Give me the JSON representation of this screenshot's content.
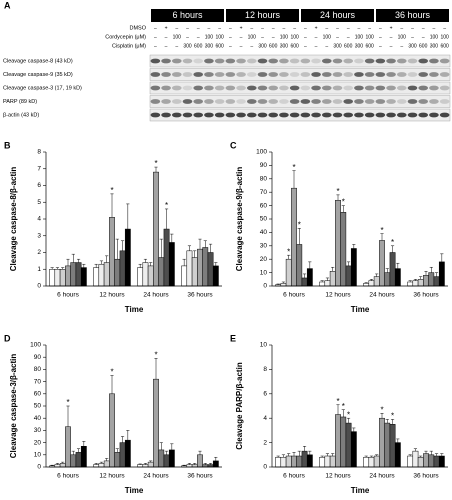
{
  "blot": {
    "panel": "A",
    "timepoints": [
      "6 hours",
      "12 hours",
      "24 hours",
      "36 hours"
    ],
    "treatments": [
      {
        "label": "DMSO",
        "lanes": [
          "–",
          "+",
          "–",
          "–",
          "–",
          "–",
          "–"
        ]
      },
      {
        "label": "Cordycepin (μM)",
        "lanes": [
          "–",
          "–",
          "100",
          "–",
          "–",
          "100",
          "100"
        ]
      },
      {
        "label": "Cisplatin (μM)",
        "lanes": [
          "–",
          "–",
          "–",
          "300",
          "600",
          "300",
          "600"
        ]
      }
    ],
    "bands": [
      "Cleavage caspase-8 (43 kD)",
      "Cleavage caspase-9 (35 kD)",
      "Cleavage caspase-3 (17, 19 kD)",
      "PARP (89 kD)",
      "β-actin (43 kD)"
    ]
  },
  "chart_data": [
    {
      "type": "bar",
      "panel": "B",
      "y_label": "Cleavage caspase-8/β-actin",
      "x_label": "Time",
      "categories": [
        "6 hours",
        "12 hours",
        "24 hours",
        "36 hours"
      ],
      "ylim": [
        0,
        8
      ],
      "yticks": [
        0,
        1,
        2,
        3,
        4,
        5,
        6,
        7,
        8
      ],
      "series": [
        {
          "color": "#ffffff",
          "values": [
            1.0,
            1.1,
            1.1,
            1.2
          ],
          "errors": [
            0.1,
            0.2,
            0.2,
            0.4
          ],
          "markers": [
            null,
            null,
            null,
            null
          ]
        },
        {
          "color": "#eeeeee",
          "values": [
            1.0,
            1.3,
            1.4,
            2.1
          ],
          "errors": [
            0.1,
            0.2,
            0.2,
            0.3
          ],
          "markers": [
            null,
            null,
            null,
            null
          ]
        },
        {
          "color": "#cfcfcf",
          "values": [
            1.0,
            1.4,
            1.2,
            1.7
          ],
          "errors": [
            0.1,
            0.4,
            0.2,
            0.4
          ],
          "markers": [
            null,
            null,
            null,
            null
          ]
        },
        {
          "color": "#a3a3a3",
          "values": [
            1.2,
            4.1,
            6.8,
            2.2
          ],
          "errors": [
            0.4,
            1.4,
            0.3,
            0.6
          ],
          "markers": [
            null,
            "*",
            "*",
            null
          ]
        },
        {
          "color": "#7d7d7d",
          "values": [
            1.4,
            1.6,
            1.7,
            2.3
          ],
          "errors": [
            0.5,
            1.2,
            1.1,
            0.4
          ],
          "markers": [
            null,
            null,
            null,
            null
          ]
        },
        {
          "color": "#4d4d4d",
          "values": [
            1.4,
            2.1,
            3.4,
            2.0
          ],
          "errors": [
            0.2,
            0.6,
            1.2,
            0.5
          ],
          "markers": [
            null,
            null,
            "*",
            null
          ]
        },
        {
          "color": "#000000",
          "values": [
            1.1,
            3.4,
            2.6,
            1.2
          ],
          "errors": [
            0.2,
            1.5,
            0.5,
            0.2
          ],
          "markers": [
            null,
            null,
            null,
            null
          ]
        }
      ]
    },
    {
      "type": "bar",
      "panel": "C",
      "y_label": "Cleavage caspase-9/β-actin",
      "x_label": "Time",
      "categories": [
        "6 hours",
        "12 hours",
        "24 hours",
        "36 hours"
      ],
      "ylim": [
        0,
        100
      ],
      "yticks": [
        0,
        10,
        20,
        30,
        40,
        50,
        60,
        70,
        80,
        90,
        100
      ],
      "series": [
        {
          "color": "#ffffff",
          "values": [
            1,
            3,
            2,
            3
          ],
          "errors": [
            0.5,
            1,
            0.5,
            1
          ],
          "markers": [
            null,
            null,
            null,
            null
          ]
        },
        {
          "color": "#eeeeee",
          "values": [
            2,
            4,
            4,
            4
          ],
          "errors": [
            1,
            2,
            1,
            1
          ],
          "markers": [
            null,
            null,
            null,
            null
          ]
        },
        {
          "color": "#cfcfcf",
          "values": [
            20,
            11,
            7,
            5
          ],
          "errors": [
            3,
            3,
            2,
            2
          ],
          "markers": [
            "*",
            null,
            null,
            null
          ]
        },
        {
          "color": "#a3a3a3",
          "values": [
            73,
            64,
            34,
            8
          ],
          "errors": [
            13,
            4,
            5,
            3
          ],
          "markers": [
            "*",
            "*",
            "*",
            null
          ]
        },
        {
          "color": "#7d7d7d",
          "values": [
            31,
            55,
            10,
            10
          ],
          "errors": [
            12,
            5,
            3,
            4
          ],
          "markers": [
            "*",
            "*",
            null,
            null
          ]
        },
        {
          "color": "#4d4d4d",
          "values": [
            6,
            15,
            25,
            7
          ],
          "errors": [
            3,
            3,
            5,
            3
          ],
          "markers": [
            null,
            null,
            "*",
            null
          ]
        },
        {
          "color": "#000000",
          "values": [
            13,
            28,
            13,
            18
          ],
          "errors": [
            5,
            3,
            4,
            6
          ],
          "markers": [
            null,
            null,
            null,
            null
          ]
        }
      ]
    },
    {
      "type": "bar",
      "panel": "D",
      "y_label": "Cleavage caspase-3/β-actin",
      "x_label": "Time",
      "categories": [
        "6 hours",
        "12 hours",
        "24 hours",
        "36 hours"
      ],
      "ylim": [
        0,
        100
      ],
      "yticks": [
        0,
        10,
        20,
        30,
        40,
        50,
        60,
        70,
        80,
        90,
        100
      ],
      "series": [
        {
          "color": "#ffffff",
          "values": [
            1,
            2,
            2,
            1
          ],
          "errors": [
            0.5,
            1,
            0.5,
            0.5
          ],
          "markers": [
            null,
            null,
            null,
            null
          ]
        },
        {
          "color": "#eeeeee",
          "values": [
            2,
            3,
            2,
            2
          ],
          "errors": [
            1,
            1,
            1,
            1
          ],
          "markers": [
            null,
            null,
            null,
            null
          ]
        },
        {
          "color": "#cfcfcf",
          "values": [
            3,
            5,
            4,
            2
          ],
          "errors": [
            1,
            2,
            1,
            1
          ],
          "markers": [
            null,
            null,
            null,
            null
          ]
        },
        {
          "color": "#a3a3a3",
          "values": [
            33,
            60,
            72,
            10
          ],
          "errors": [
            17,
            15,
            17,
            3
          ],
          "markers": [
            "*",
            "*",
            "*",
            null
          ]
        },
        {
          "color": "#7d7d7d",
          "values": [
            10,
            12,
            14,
            2
          ],
          "errors": [
            3,
            3,
            6,
            1
          ],
          "markers": [
            null,
            null,
            null,
            null
          ]
        },
        {
          "color": "#4d4d4d",
          "values": [
            12,
            20,
            10,
            2
          ],
          "errors": [
            3,
            5,
            3,
            1
          ],
          "markers": [
            null,
            null,
            null,
            null
          ]
        },
        {
          "color": "#000000",
          "values": [
            17,
            22,
            14,
            5
          ],
          "errors": [
            4,
            8,
            5,
            3
          ],
          "markers": [
            null,
            null,
            null,
            null
          ]
        }
      ]
    },
    {
      "type": "bar",
      "panel": "E",
      "y_label": "Cleavage PARP/β-actin",
      "x_label": "Time",
      "categories": [
        "6 hours",
        "12 hours",
        "24 hours",
        "36 hours"
      ],
      "ylim": [
        0,
        10
      ],
      "yticks": [
        0,
        2,
        4,
        6,
        8,
        10
      ],
      "series": [
        {
          "color": "#ffffff",
          "values": [
            0.8,
            0.8,
            0.8,
            0.9
          ],
          "errors": [
            0.1,
            0.1,
            0.1,
            0.1
          ],
          "markers": [
            null,
            null,
            null,
            null
          ]
        },
        {
          "color": "#eeeeee",
          "values": [
            0.8,
            0.9,
            0.8,
            1.3
          ],
          "errors": [
            0.2,
            0.2,
            0.1,
            0.2
          ],
          "markers": [
            null,
            null,
            null,
            null
          ]
        },
        {
          "color": "#cfcfcf",
          "values": [
            0.9,
            0.9,
            0.9,
            0.8
          ],
          "errors": [
            0.2,
            0.2,
            0.1,
            0.1
          ],
          "markers": [
            null,
            null,
            null,
            null
          ]
        },
        {
          "color": "#a3a3a3",
          "values": [
            0.9,
            4.3,
            4.0,
            1.1
          ],
          "errors": [
            0.3,
            0.8,
            0.4,
            0.2
          ],
          "markers": [
            null,
            "*",
            "*",
            null
          ]
        },
        {
          "color": "#7d7d7d",
          "values": [
            0.9,
            4.1,
            3.6,
            1.0
          ],
          "errors": [
            0.4,
            0.6,
            0.3,
            0.3
          ],
          "markers": [
            null,
            "*",
            null,
            null
          ]
        },
        {
          "color": "#4d4d4d",
          "values": [
            1.3,
            3.6,
            3.5,
            0.9
          ],
          "errors": [
            0.4,
            0.4,
            0.4,
            0.2
          ],
          "markers": [
            null,
            "*",
            "*",
            null
          ]
        },
        {
          "color": "#000000",
          "values": [
            1.0,
            2.9,
            2.0,
            0.9
          ],
          "errors": [
            0.3,
            0.3,
            0.3,
            0.2
          ],
          "markers": [
            null,
            null,
            null,
            null
          ]
        }
      ]
    }
  ]
}
